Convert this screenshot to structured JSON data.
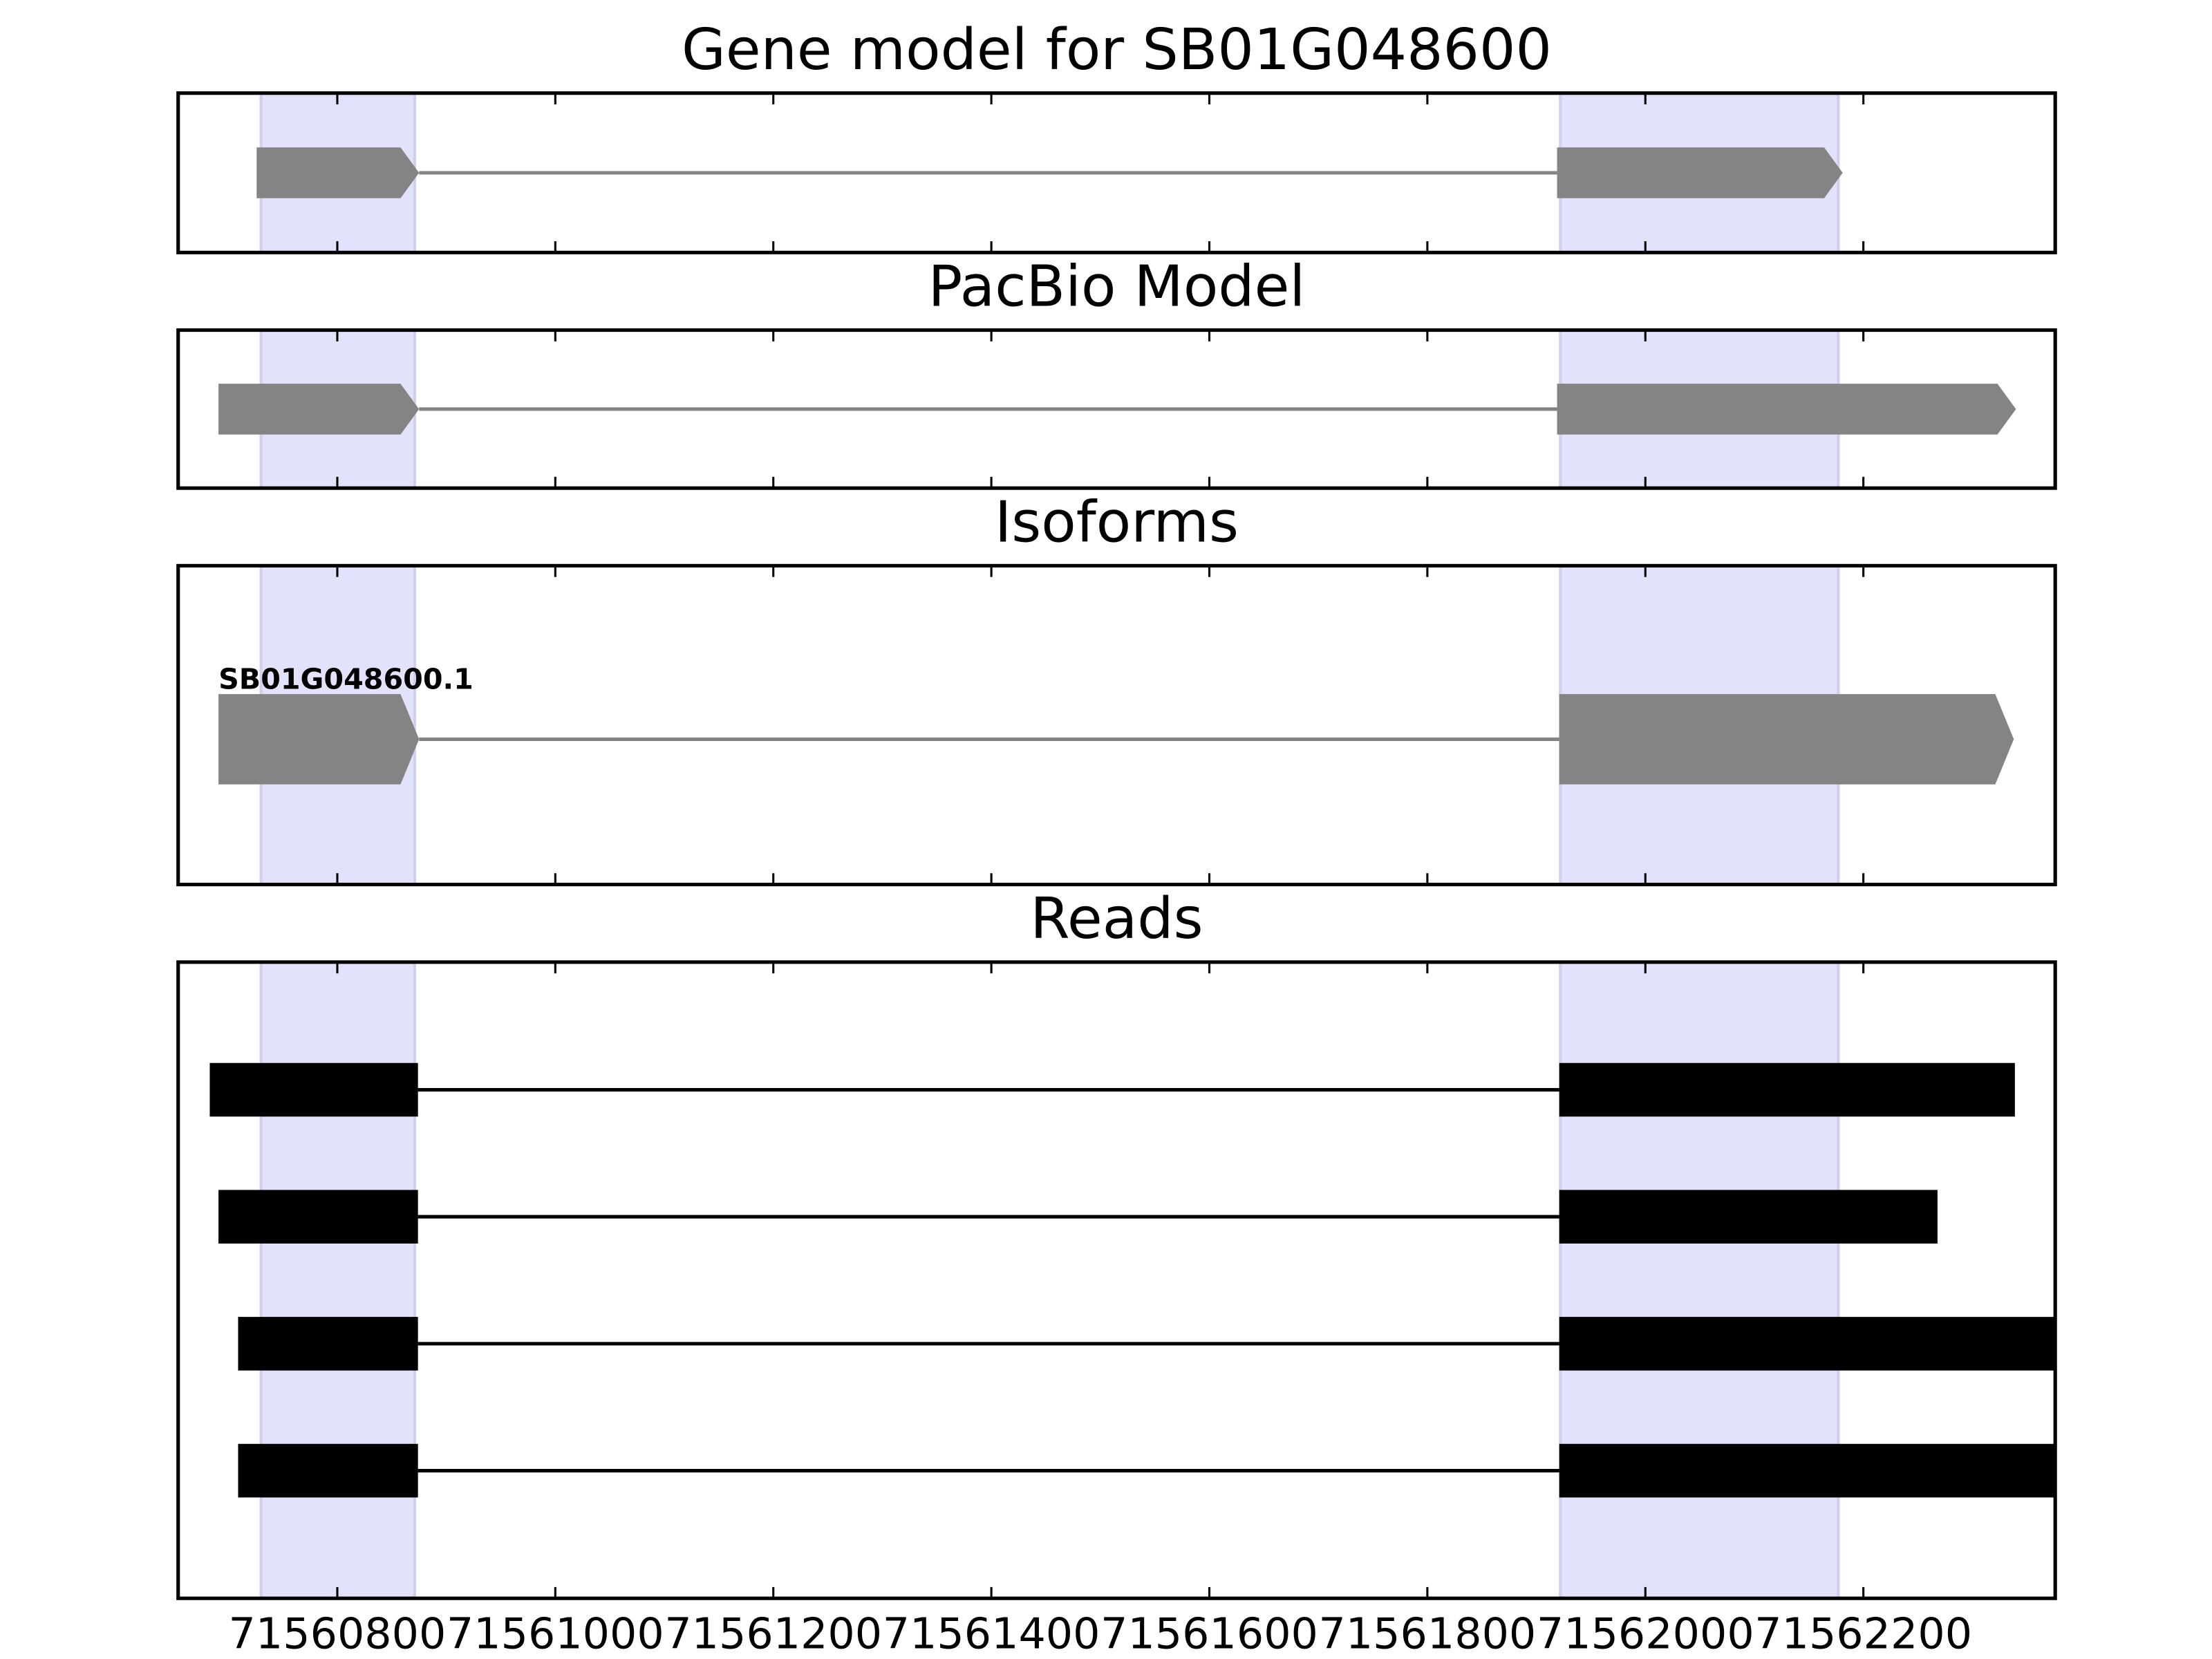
{
  "chart_data": {
    "type": "gene-model",
    "xlim": [
      71560654,
      71562376
    ],
    "xticks": [
      71560800,
      71561000,
      71561200,
      71561400,
      71561600,
      71561800,
      71562000,
      71562200
    ],
    "highlight_regions": [
      [
        71560730,
        71560871
      ],
      [
        71561922,
        71562177
      ]
    ],
    "highlight_color": "#e2e2fc",
    "panels": [
      {
        "title": "Gene model for SB01G048600",
        "style": "arrow",
        "color": "#848484",
        "features": [
          {
            "exons": [
              [
                71560726,
                71560875
              ],
              [
                71561919,
                71562181
              ]
            ]
          }
        ]
      },
      {
        "title": "PacBio Model",
        "style": "arrow",
        "color": "#848484",
        "features": [
          {
            "exons": [
              [
                71560691,
                71560875
              ],
              [
                71561919,
                71562340
              ]
            ]
          }
        ]
      },
      {
        "title": "Isoforms",
        "style": "arrow",
        "color": "#848484",
        "features": [
          {
            "label": "SB01G048600.1",
            "exons": [
              [
                71560691,
                71560875
              ],
              [
                71561921,
                71562338
              ]
            ]
          }
        ]
      },
      {
        "title": "Reads",
        "style": "box",
        "color": "#000000",
        "features": [
          {
            "exons": [
              [
                71560683,
                71560874
              ],
              [
                71561921,
                71562339
              ]
            ]
          },
          {
            "exons": [
              [
                71560691,
                71560874
              ],
              [
                71561921,
                71562268
              ]
            ]
          },
          {
            "exons": [
              [
                71560709,
                71560874
              ],
              [
                71561921,
                71562400
              ]
            ]
          },
          {
            "exons": [
              [
                71560709,
                71560874
              ],
              [
                71561921,
                71562400
              ]
            ]
          }
        ]
      }
    ]
  }
}
